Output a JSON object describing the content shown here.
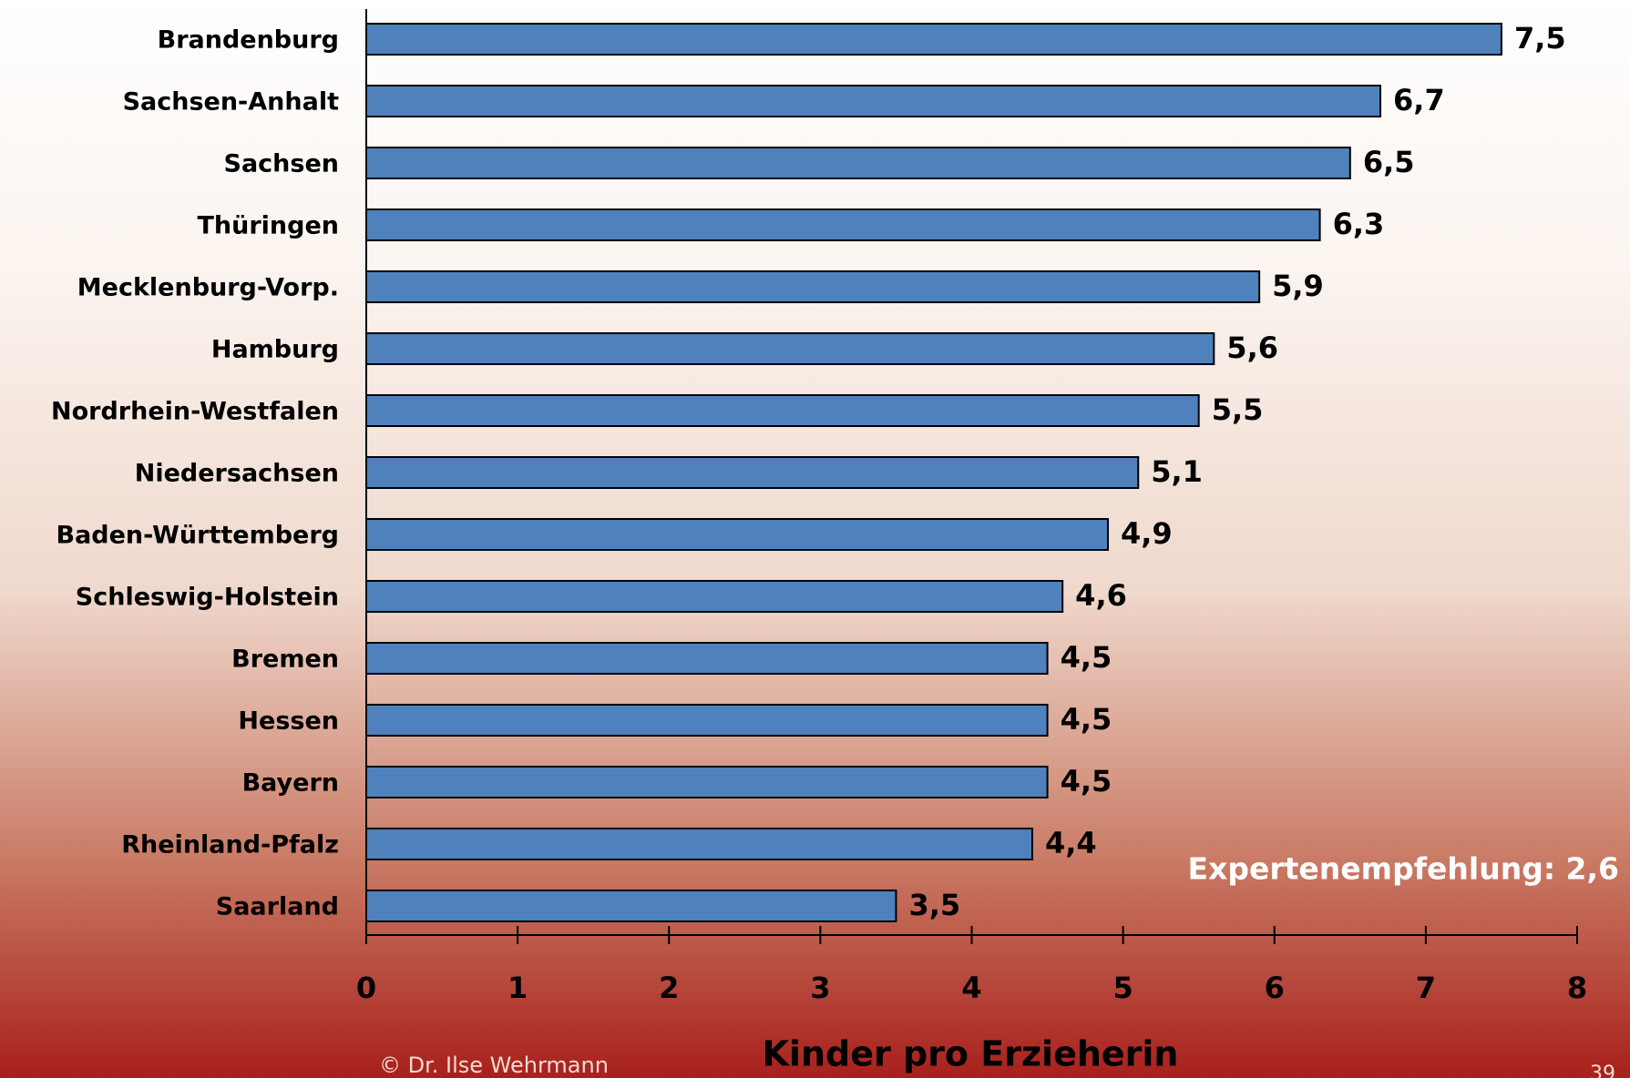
{
  "chart_data": {
    "type": "bar",
    "orientation": "horizontal",
    "categories": [
      "Brandenburg",
      "Sachsen-Anhalt",
      "Sachsen",
      "Thüringen",
      "Mecklenburg-Vorp.",
      "Hamburg",
      "Nordrhein-Westfalen",
      "Niedersachsen",
      "Baden-Württemberg",
      "Schleswig-Holstein",
      "Bremen",
      "Hessen",
      "Bayern",
      "Rheinland-Pfalz",
      "Saarland"
    ],
    "values": [
      7.5,
      6.7,
      6.5,
      6.3,
      5.9,
      5.6,
      5.5,
      5.1,
      4.9,
      4.6,
      4.5,
      4.5,
      4.5,
      4.4,
      3.5
    ],
    "value_labels": [
      "7,5",
      "6,7",
      "6,5",
      "6,3",
      "5,9",
      "5,6",
      "5,5",
      "5,1",
      "4,9",
      "4,6",
      "4,5",
      "4,5",
      "4,5",
      "4,4",
      "3,5"
    ],
    "color": "#4f81bd",
    "xlabel": "Kinder pro Erzieherin",
    "xlim": [
      0,
      8
    ],
    "xticks": [
      0,
      1,
      2,
      3,
      4,
      5,
      6,
      7,
      8
    ],
    "annotation": "Expertenempfehlung: 2,6",
    "footer": "© Dr. Ilse Wehrmann",
    "page_number": "39"
  }
}
